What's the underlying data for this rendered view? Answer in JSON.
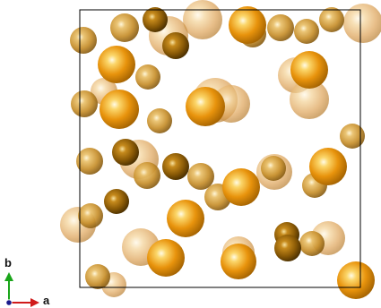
{
  "axes": {
    "a_label": "a",
    "b_label": "b",
    "a_color": "#d01a1a",
    "b_color": "#1aa51a",
    "c_color": "#1a1a8c"
  },
  "unit_cell": {
    "edge_color": "#000000"
  },
  "palette": {
    "atom_base": "#e2920e",
    "atom_dark": "#8a5a06",
    "atom_light": "#f7cf72",
    "atom_far": "#c9994a"
  }
}
